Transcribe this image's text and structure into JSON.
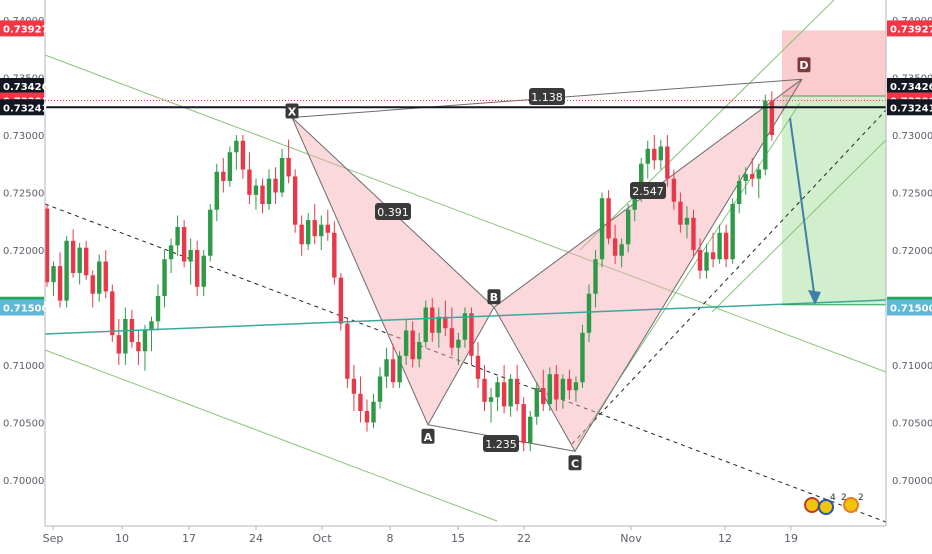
{
  "chart_data": {
    "type": "candlestick",
    "title": "",
    "xlabel": "",
    "ylabel": "",
    "ylim": [
      0.6962,
      0.7403
    ],
    "x_tick_labels": [
      "Sep",
      "10",
      "17",
      "24",
      "Oct",
      "8",
      "15",
      "22",
      "Nov",
      "12",
      "19"
    ],
    "y_tick_labels": [
      "0.70000",
      "0.70500",
      "0.71000",
      "0.71500",
      "0.72000",
      "0.72500",
      "0.73000",
      "0.73500",
      "0.74000"
    ],
    "price_tags": [
      {
        "label": "0.73927",
        "value": 0.73927,
        "color": "#f23645"
      },
      {
        "label": "0.73426",
        "value": 0.73426,
        "color": "#131722"
      },
      {
        "label": "0.73300",
        "value": 0.733,
        "color": "#f23645"
      },
      {
        "label": "0.73241",
        "value": 0.73241,
        "color": "#131722"
      },
      {
        "label": "0.71524",
        "value": 0.71524,
        "color": "#26a65b"
      },
      {
        "label": "0.71500",
        "value": 0.715,
        "color": "#5fb8d6"
      }
    ],
    "pattern_points": [
      {
        "label": "X",
        "value": 0.7317
      },
      {
        "label": "A",
        "value": 0.7048
      },
      {
        "label": "B",
        "value": 0.7152
      },
      {
        "label": "C",
        "value": 0.7025
      },
      {
        "label": "D",
        "value": 0.7352
      }
    ],
    "ratios": [
      {
        "label": "0.391",
        "between": "XB"
      },
      {
        "label": "1.235",
        "between": "AC"
      },
      {
        "label": "2.547",
        "between": "BD"
      },
      {
        "label": "1.138",
        "between": "XD"
      }
    ],
    "candles": [
      [
        0.7236,
        0.724,
        0.7168,
        0.7172
      ],
      [
        0.7172,
        0.719,
        0.716,
        0.7186
      ],
      [
        0.7186,
        0.7198,
        0.715,
        0.7156
      ],
      [
        0.7156,
        0.7212,
        0.715,
        0.7208
      ],
      [
        0.7208,
        0.7218,
        0.7176,
        0.718
      ],
      [
        0.718,
        0.7206,
        0.717,
        0.7202
      ],
      [
        0.7202,
        0.7208,
        0.7174,
        0.7178
      ],
      [
        0.7178,
        0.7182,
        0.715,
        0.7162
      ],
      [
        0.7162,
        0.7196,
        0.7155,
        0.719
      ],
      [
        0.719,
        0.72,
        0.7158,
        0.7164
      ],
      [
        0.7164,
        0.717,
        0.712,
        0.7126
      ],
      [
        0.7126,
        0.714,
        0.71,
        0.711
      ],
      [
        0.711,
        0.715,
        0.71,
        0.714
      ],
      [
        0.714,
        0.7148,
        0.7115,
        0.712
      ],
      [
        0.712,
        0.713,
        0.71,
        0.7112
      ],
      [
        0.7112,
        0.7135,
        0.7095,
        0.713
      ],
      [
        0.713,
        0.7142,
        0.7112,
        0.7138
      ],
      [
        0.7138,
        0.717,
        0.713,
        0.716
      ],
      [
        0.716,
        0.72,
        0.715,
        0.7192
      ],
      [
        0.7192,
        0.721,
        0.718,
        0.7204
      ],
      [
        0.7204,
        0.723,
        0.7195,
        0.722
      ],
      [
        0.722,
        0.7226,
        0.7185,
        0.719
      ],
      [
        0.719,
        0.721,
        0.717,
        0.72
      ],
      [
        0.72,
        0.7208,
        0.716,
        0.7168
      ],
      [
        0.7168,
        0.72,
        0.716,
        0.7195
      ],
      [
        0.7195,
        0.724,
        0.719,
        0.7235
      ],
      [
        0.7235,
        0.7275,
        0.7225,
        0.7268
      ],
      [
        0.7268,
        0.728,
        0.725,
        0.726
      ],
      [
        0.726,
        0.729,
        0.7255,
        0.7285
      ],
      [
        0.7285,
        0.73,
        0.727,
        0.7295
      ],
      [
        0.7295,
        0.73,
        0.7262,
        0.727
      ],
      [
        0.727,
        0.7285,
        0.724,
        0.7248
      ],
      [
        0.7248,
        0.7262,
        0.7235,
        0.7256
      ],
      [
        0.7256,
        0.7262,
        0.7232,
        0.724
      ],
      [
        0.724,
        0.727,
        0.7235,
        0.7262
      ],
      [
        0.7262,
        0.7272,
        0.724,
        0.725
      ],
      [
        0.725,
        0.7288,
        0.7246,
        0.728
      ],
      [
        0.728,
        0.7296,
        0.7258,
        0.7264
      ],
      [
        0.7264,
        0.727,
        0.7215,
        0.7222
      ],
      [
        0.7222,
        0.723,
        0.7195,
        0.7205
      ],
      [
        0.7205,
        0.7232,
        0.72,
        0.7226
      ],
      [
        0.7226,
        0.724,
        0.7205,
        0.7212
      ],
      [
        0.7212,
        0.723,
        0.72,
        0.7222
      ],
      [
        0.7222,
        0.7235,
        0.7208,
        0.7215
      ],
      [
        0.7215,
        0.7225,
        0.717,
        0.7176
      ],
      [
        0.7176,
        0.718,
        0.713,
        0.7136
      ],
      [
        0.7136,
        0.714,
        0.708,
        0.7088
      ],
      [
        0.7088,
        0.71,
        0.706,
        0.7075
      ],
      [
        0.7075,
        0.709,
        0.705,
        0.706
      ],
      [
        0.706,
        0.707,
        0.7042,
        0.705
      ],
      [
        0.705,
        0.7075,
        0.7045,
        0.7068
      ],
      [
        0.7068,
        0.7098,
        0.7062,
        0.709
      ],
      [
        0.709,
        0.7115,
        0.708,
        0.7105
      ],
      [
        0.7105,
        0.7118,
        0.708,
        0.7085
      ],
      [
        0.7085,
        0.7112,
        0.708,
        0.7108
      ],
      [
        0.7108,
        0.714,
        0.71,
        0.713
      ],
      [
        0.713,
        0.7138,
        0.7098,
        0.7105
      ],
      [
        0.7105,
        0.7128,
        0.7098,
        0.712
      ],
      [
        0.712,
        0.7156,
        0.7115,
        0.715
      ],
      [
        0.715,
        0.7158,
        0.712,
        0.7128
      ],
      [
        0.7128,
        0.715,
        0.7115,
        0.7142
      ],
      [
        0.7142,
        0.7156,
        0.7125,
        0.7132
      ],
      [
        0.7132,
        0.715,
        0.7108,
        0.7115
      ],
      [
        0.7115,
        0.7128,
        0.71,
        0.7122
      ],
      [
        0.7122,
        0.715,
        0.7115,
        0.7145
      ],
      [
        0.7145,
        0.715,
        0.71,
        0.7108
      ],
      [
        0.7108,
        0.712,
        0.708,
        0.7088
      ],
      [
        0.7088,
        0.71,
        0.706,
        0.7068
      ],
      [
        0.7068,
        0.708,
        0.705,
        0.7072
      ],
      [
        0.7072,
        0.709,
        0.706,
        0.7085
      ],
      [
        0.7085,
        0.71,
        0.7058,
        0.7064
      ],
      [
        0.7064,
        0.7092,
        0.7055,
        0.7088
      ],
      [
        0.7088,
        0.71,
        0.706,
        0.7066
      ],
      [
        0.7066,
        0.7072,
        0.7025,
        0.7032
      ],
      [
        0.7032,
        0.706,
        0.7025,
        0.7055
      ],
      [
        0.7055,
        0.7085,
        0.7048,
        0.708
      ],
      [
        0.708,
        0.7096,
        0.706,
        0.7066
      ],
      [
        0.7066,
        0.7098,
        0.706,
        0.7092
      ],
      [
        0.7092,
        0.71,
        0.706,
        0.707
      ],
      [
        0.707,
        0.7092,
        0.7062,
        0.7088
      ],
      [
        0.7088,
        0.7096,
        0.707,
        0.7078
      ],
      [
        0.7078,
        0.709,
        0.7068,
        0.7085
      ],
      [
        0.7085,
        0.7135,
        0.708,
        0.7128
      ],
      [
        0.7128,
        0.717,
        0.712,
        0.7162
      ],
      [
        0.7162,
        0.72,
        0.715,
        0.7192
      ],
      [
        0.7192,
        0.725,
        0.7185,
        0.7245
      ],
      [
        0.7245,
        0.7252,
        0.7205,
        0.721
      ],
      [
        0.721,
        0.7222,
        0.7188,
        0.7195
      ],
      [
        0.7195,
        0.721,
        0.7185,
        0.7205
      ],
      [
        0.7205,
        0.724,
        0.7198,
        0.7235
      ],
      [
        0.7235,
        0.7258,
        0.7225,
        0.725
      ],
      [
        0.725,
        0.728,
        0.7242,
        0.7275
      ],
      [
        0.7275,
        0.7295,
        0.7262,
        0.7288
      ],
      [
        0.7288,
        0.73,
        0.727,
        0.7278
      ],
      [
        0.7278,
        0.7296,
        0.727,
        0.729
      ],
      [
        0.729,
        0.73,
        0.7255,
        0.7262
      ],
      [
        0.7262,
        0.727,
        0.7235,
        0.7242
      ],
      [
        0.7242,
        0.725,
        0.7215,
        0.7222
      ],
      [
        0.7222,
        0.7238,
        0.721,
        0.7228
      ],
      [
        0.7228,
        0.7235,
        0.7195,
        0.72
      ],
      [
        0.72,
        0.721,
        0.7175,
        0.7182
      ],
      [
        0.7182,
        0.7205,
        0.7175,
        0.7198
      ],
      [
        0.7198,
        0.7215,
        0.7185,
        0.7192
      ],
      [
        0.7192,
        0.7222,
        0.7188,
        0.7215
      ],
      [
        0.7215,
        0.7222,
        0.7185,
        0.7192
      ],
      [
        0.7192,
        0.7245,
        0.7188,
        0.724
      ],
      [
        0.724,
        0.7265,
        0.7232,
        0.726
      ],
      [
        0.726,
        0.7272,
        0.7248,
        0.7266
      ],
      [
        0.7266,
        0.728,
        0.7255,
        0.7262
      ],
      [
        0.7262,
        0.7275,
        0.7245,
        0.727
      ],
      [
        0.727,
        0.7335,
        0.7265,
        0.733
      ],
      [
        0.733,
        0.7338,
        0.7295,
        0.73
      ]
    ]
  }
}
